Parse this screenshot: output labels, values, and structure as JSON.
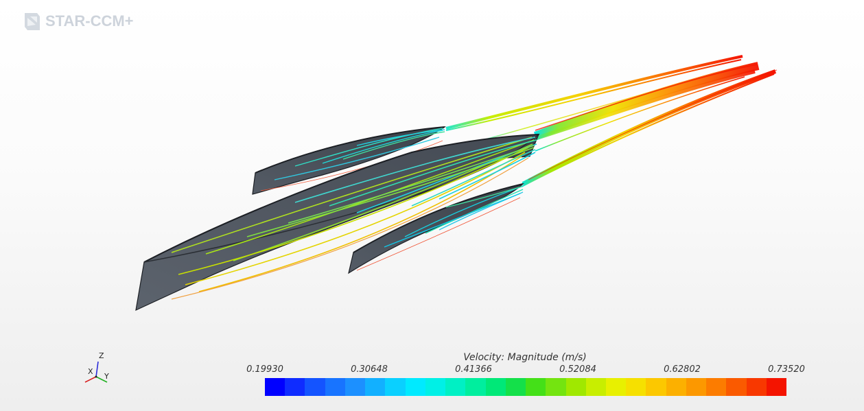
{
  "app": {
    "logo_text": "STAR-CCM+"
  },
  "triad": {
    "z_label": "Z",
    "x_label": "X",
    "y_label": "Y"
  },
  "legend": {
    "title": "Velocity: Magnitude (m/s)",
    "ticks": [
      "0.19930",
      "0.30648",
      "0.41366",
      "0.52084",
      "0.62802",
      "0.73520"
    ],
    "min": 0.1993,
    "max": 0.7352,
    "colors": [
      "#0000ff",
      "#0f2cff",
      "#1454ff",
      "#1874ff",
      "#1c90ff",
      "#12b0ff",
      "#0ad0ff",
      "#00eaff",
      "#00f0e6",
      "#00f0c4",
      "#00ee9e",
      "#00e878",
      "#14e04a",
      "#44e018",
      "#74e410",
      "#a0e800",
      "#c8ee00",
      "#e8f000",
      "#f6e000",
      "#fcc800",
      "#fcb000",
      "#fc9800",
      "#fc7c00",
      "#fa5a00",
      "#f83800",
      "#f41400"
    ]
  },
  "scene": {
    "bodies": [
      "hull-upper-left",
      "hull-center",
      "hull-lower-right"
    ],
    "accent_colors": {
      "hull": "#4e5560",
      "hull_dark": "#2f343b",
      "edge": "#1c1f24"
    }
  }
}
